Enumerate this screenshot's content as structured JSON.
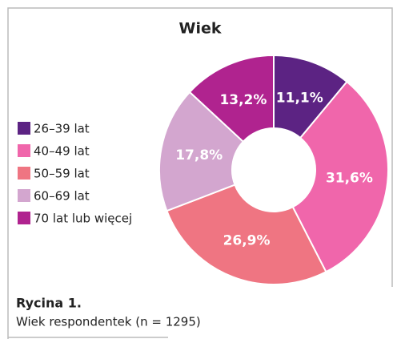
{
  "chart_data": {
    "type": "donut",
    "title": "Wiek",
    "categories": [
      "26–39 lat",
      "40–49 lat",
      "50–59 lat",
      "60–69 lat",
      "70 lat lub więcej"
    ],
    "values": [
      11.1,
      31.6,
      26.9,
      17.8,
      13.2
    ],
    "value_labels": [
      "11,1%",
      "31,6%",
      "26,9%",
      "17,8%",
      "13,2%"
    ],
    "colors": [
      "#5c2383",
      "#f066ab",
      "#ef7582",
      "#d3a6cf",
      "#b0238f"
    ],
    "legend": "left",
    "caption_title": "Rycina 1.",
    "caption": "Wiek respondentek (n = 1295)"
  }
}
